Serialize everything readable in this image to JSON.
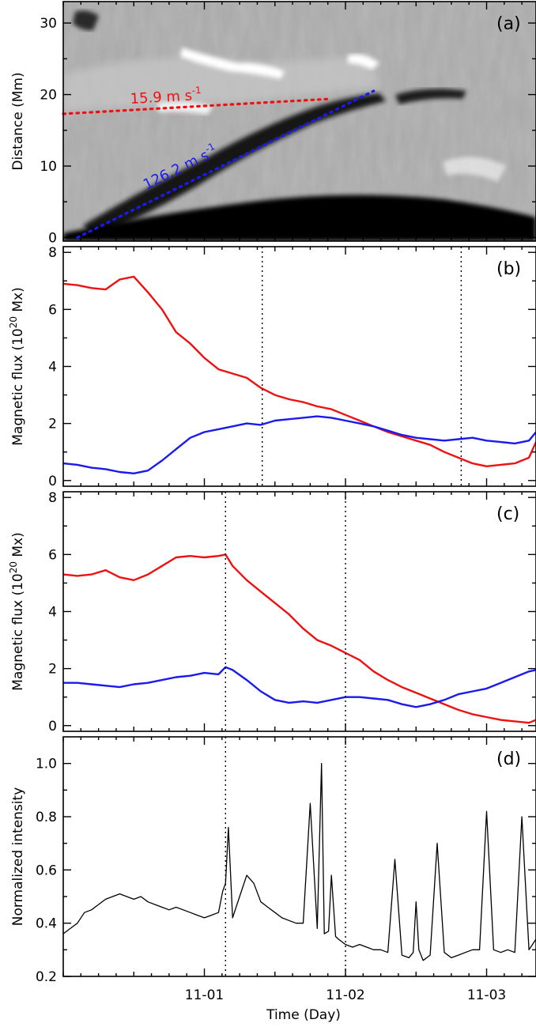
{
  "chart_data": [
    {
      "panel": "(a)",
      "type": "heatmap",
      "ylabel": "Distance (Mm)",
      "yticks": [
        0,
        10,
        20,
        30
      ],
      "ylim": [
        -0.5,
        33
      ],
      "annotations": [
        {
          "label": "15.9 m s",
          "sup": "-1",
          "color": "#ee1111",
          "x": [
            0.0,
            1.9
          ],
          "y": [
            17.3,
            19.4
          ]
        },
        {
          "label": "126.2 m s",
          "sup": "-1",
          "color": "#1a1aee",
          "x": [
            0.1,
            2.2
          ],
          "y": [
            0.0,
            20.5
          ]
        }
      ]
    },
    {
      "panel": "(b)",
      "type": "line",
      "ylabel": "Magnetic flux (10",
      "ylabel_sup": "20",
      "ylabel_end": " Mx)",
      "yticks": [
        0,
        2,
        4,
        6,
        8
      ],
      "ylim": [
        -0.2,
        8.2
      ],
      "vlines": [
        1.41,
        2.82
      ],
      "series": [
        {
          "color": "#ee1111",
          "x": [
            0.0,
            0.1,
            0.2,
            0.3,
            0.4,
            0.5,
            0.6,
            0.7,
            0.8,
            0.9,
            1.0,
            1.1,
            1.2,
            1.3,
            1.4,
            1.5,
            1.6,
            1.7,
            1.8,
            1.9,
            2.0,
            2.1,
            2.2,
            2.3,
            2.4,
            2.5,
            2.6,
            2.7,
            2.8,
            2.9,
            3.0,
            3.1,
            3.2,
            3.3,
            3.35
          ],
          "y": [
            6.9,
            6.85,
            6.75,
            6.7,
            7.05,
            7.15,
            6.6,
            6.0,
            5.2,
            4.8,
            4.3,
            3.9,
            3.75,
            3.6,
            3.25,
            3.0,
            2.85,
            2.75,
            2.6,
            2.5,
            2.3,
            2.1,
            1.9,
            1.7,
            1.55,
            1.4,
            1.25,
            1.0,
            0.8,
            0.6,
            0.5,
            0.55,
            0.6,
            0.8,
            1.35
          ]
        },
        {
          "color": "#1a1aee",
          "x": [
            0.0,
            0.1,
            0.2,
            0.3,
            0.4,
            0.5,
            0.6,
            0.7,
            0.8,
            0.9,
            1.0,
            1.1,
            1.2,
            1.3,
            1.4,
            1.5,
            1.6,
            1.7,
            1.8,
            1.9,
            2.0,
            2.1,
            2.2,
            2.3,
            2.4,
            2.5,
            2.6,
            2.7,
            2.8,
            2.9,
            3.0,
            3.1,
            3.2,
            3.3,
            3.35
          ],
          "y": [
            0.6,
            0.55,
            0.45,
            0.4,
            0.3,
            0.25,
            0.35,
            0.7,
            1.1,
            1.5,
            1.7,
            1.8,
            1.9,
            2.0,
            1.95,
            2.1,
            2.15,
            2.2,
            2.25,
            2.2,
            2.1,
            2.0,
            1.9,
            1.75,
            1.6,
            1.5,
            1.45,
            1.4,
            1.45,
            1.5,
            1.4,
            1.35,
            1.3,
            1.4,
            1.7
          ]
        }
      ]
    },
    {
      "panel": "(c)",
      "type": "line",
      "ylabel": "Magnetic flux (10",
      "ylabel_sup": "20",
      "ylabel_end": " Mx)",
      "yticks": [
        0,
        2,
        4,
        6,
        8
      ],
      "ylim": [
        -0.2,
        8.2
      ],
      "vlines": [
        1.15,
        2.0
      ],
      "series": [
        {
          "color": "#ee1111",
          "x": [
            0.0,
            0.1,
            0.2,
            0.3,
            0.4,
            0.5,
            0.6,
            0.7,
            0.8,
            0.9,
            1.0,
            1.1,
            1.15,
            1.2,
            1.3,
            1.4,
            1.5,
            1.6,
            1.7,
            1.8,
            1.9,
            2.0,
            2.1,
            2.2,
            2.3,
            2.4,
            2.5,
            2.6,
            2.7,
            2.8,
            2.9,
            3.0,
            3.1,
            3.2,
            3.3,
            3.35
          ],
          "y": [
            5.3,
            5.25,
            5.3,
            5.45,
            5.2,
            5.1,
            5.3,
            5.6,
            5.9,
            5.95,
            5.9,
            5.95,
            6.0,
            5.6,
            5.1,
            4.7,
            4.3,
            3.9,
            3.4,
            3.0,
            2.8,
            2.55,
            2.3,
            1.9,
            1.6,
            1.35,
            1.15,
            0.95,
            0.75,
            0.55,
            0.4,
            0.3,
            0.2,
            0.15,
            0.1,
            0.2
          ]
        },
        {
          "color": "#1a1aee",
          "x": [
            0.0,
            0.1,
            0.2,
            0.3,
            0.4,
            0.5,
            0.6,
            0.7,
            0.8,
            0.9,
            1.0,
            1.1,
            1.15,
            1.2,
            1.3,
            1.4,
            1.5,
            1.6,
            1.7,
            1.8,
            1.9,
            2.0,
            2.1,
            2.2,
            2.3,
            2.4,
            2.5,
            2.6,
            2.7,
            2.8,
            2.9,
            3.0,
            3.1,
            3.2,
            3.3,
            3.35
          ],
          "y": [
            1.5,
            1.5,
            1.45,
            1.4,
            1.35,
            1.45,
            1.5,
            1.6,
            1.7,
            1.75,
            1.85,
            1.8,
            2.05,
            1.95,
            1.6,
            1.2,
            0.9,
            0.8,
            0.85,
            0.8,
            0.9,
            1.0,
            1.0,
            0.95,
            0.9,
            0.75,
            0.65,
            0.75,
            0.9,
            1.1,
            1.2,
            1.3,
            1.5,
            1.7,
            1.9,
            1.95
          ]
        }
      ]
    },
    {
      "panel": "(d)",
      "type": "line",
      "ylabel": "Normalized intensity",
      "xlabel": "Time (Day)",
      "yticks": [
        0.2,
        0.4,
        0.6,
        0.8,
        1.0
      ],
      "ytick_labels": [
        "0.2",
        "0.4",
        "0.6",
        "0.8",
        "1.0"
      ],
      "ylim": [
        0.2,
        1.1
      ],
      "xlim": [
        0.0,
        3.35
      ],
      "xticks": [
        0,
        0.5,
        1,
        1.5,
        2,
        2.5,
        3
      ],
      "major_xticks": [
        1,
        2,
        3
      ],
      "xtick_labels": [
        "11-01",
        "11-02",
        "11-03"
      ],
      "vlines": [
        1.15,
        2.0
      ],
      "series": [
        {
          "color": "#000000",
          "x": [
            0.0,
            0.05,
            0.1,
            0.15,
            0.2,
            0.25,
            0.3,
            0.35,
            0.4,
            0.45,
            0.5,
            0.55,
            0.6,
            0.65,
            0.7,
            0.75,
            0.8,
            0.85,
            0.9,
            0.95,
            1.0,
            1.05,
            1.1,
            1.13,
            1.15,
            1.17,
            1.2,
            1.25,
            1.3,
            1.35,
            1.4,
            1.45,
            1.5,
            1.55,
            1.6,
            1.65,
            1.7,
            1.75,
            1.8,
            1.83,
            1.85,
            1.88,
            1.9,
            1.93,
            1.95,
            2.0,
            2.05,
            2.1,
            2.15,
            2.2,
            2.25,
            2.3,
            2.35,
            2.4,
            2.45,
            2.48,
            2.5,
            2.52,
            2.55,
            2.6,
            2.65,
            2.7,
            2.75,
            2.8,
            2.85,
            2.9,
            2.95,
            3.0,
            3.05,
            3.1,
            3.15,
            3.2,
            3.25,
            3.3,
            3.35
          ],
          "y": [
            0.36,
            0.38,
            0.4,
            0.44,
            0.45,
            0.47,
            0.49,
            0.5,
            0.51,
            0.5,
            0.49,
            0.5,
            0.48,
            0.47,
            0.46,
            0.45,
            0.46,
            0.45,
            0.44,
            0.43,
            0.42,
            0.43,
            0.44,
            0.52,
            0.55,
            0.76,
            0.42,
            0.5,
            0.58,
            0.55,
            0.48,
            0.46,
            0.44,
            0.42,
            0.41,
            0.4,
            0.4,
            0.85,
            0.38,
            1.0,
            0.36,
            0.37,
            0.58,
            0.35,
            0.34,
            0.32,
            0.31,
            0.32,
            0.31,
            0.3,
            0.3,
            0.29,
            0.64,
            0.28,
            0.27,
            0.29,
            0.48,
            0.3,
            0.26,
            0.28,
            0.7,
            0.29,
            0.27,
            0.28,
            0.29,
            0.3,
            0.3,
            0.82,
            0.3,
            0.29,
            0.3,
            0.29,
            0.8,
            0.3,
            0.34
          ]
        }
      ]
    }
  ]
}
